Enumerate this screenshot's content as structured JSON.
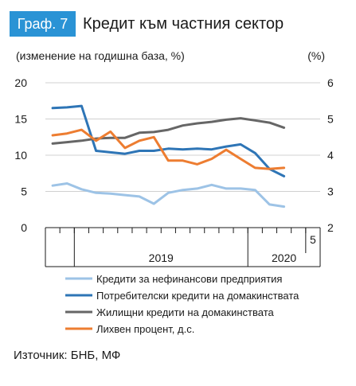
{
  "header": {
    "badge": "Граф. 7",
    "title": "Кредит към частния сектор"
  },
  "source": "Източник: БНБ, МФ",
  "chart_data": {
    "type": "line",
    "left_axis_label": "(изменение на годишна база, %)",
    "right_axis_label": "(%)",
    "ylim": [
      0,
      20
    ],
    "yticks": [
      0,
      5,
      10,
      15,
      20
    ],
    "y2lim": [
      2,
      6
    ],
    "y2ticks": [
      2,
      3,
      4,
      5,
      6
    ],
    "grid": true,
    "legend_position": "bottom",
    "x_period_labels": [
      {
        "label": "2019",
        "start": 2,
        "end": 13
      },
      {
        "label": "2020",
        "start": 14,
        "end": 18
      }
    ],
    "x_last_label": "5",
    "months": 19,
    "series": [
      {
        "name": "Кредити за нефинансови предприятия",
        "axis": "left",
        "color": "#9dc3e6",
        "values": [
          5.8,
          6.1,
          5.3,
          4.8,
          4.7,
          4.5,
          4.3,
          3.3,
          4.8,
          5.2,
          5.4,
          5.9,
          5.4,
          5.4,
          5.2,
          3.2,
          2.9
        ]
      },
      {
        "name": "Потребителски кредити на домакинствата",
        "axis": "left",
        "color": "#2e75b6",
        "values": [
          16.5,
          16.6,
          16.8,
          10.6,
          10.4,
          10.2,
          10.6,
          10.6,
          10.9,
          10.8,
          10.9,
          10.8,
          11.2,
          11.5,
          10.3,
          8.1,
          7.1
        ]
      },
      {
        "name": "Жилищни кредити на домакинствата",
        "axis": "left",
        "color": "#666666",
        "values": [
          11.6,
          11.8,
          12.0,
          12.3,
          12.4,
          12.4,
          13.1,
          13.2,
          13.5,
          14.1,
          14.4,
          14.6,
          14.9,
          15.1,
          14.8,
          14.5,
          13.8
        ]
      },
      {
        "name": "Лихвен процент, д.с.",
        "axis": "right",
        "color": "#ed7d31",
        "values": [
          4.55,
          4.6,
          4.7,
          4.4,
          4.65,
          4.2,
          4.4,
          4.5,
          3.85,
          3.85,
          3.75,
          3.9,
          4.15,
          3.9,
          3.65,
          3.62,
          3.65
        ]
      }
    ]
  }
}
